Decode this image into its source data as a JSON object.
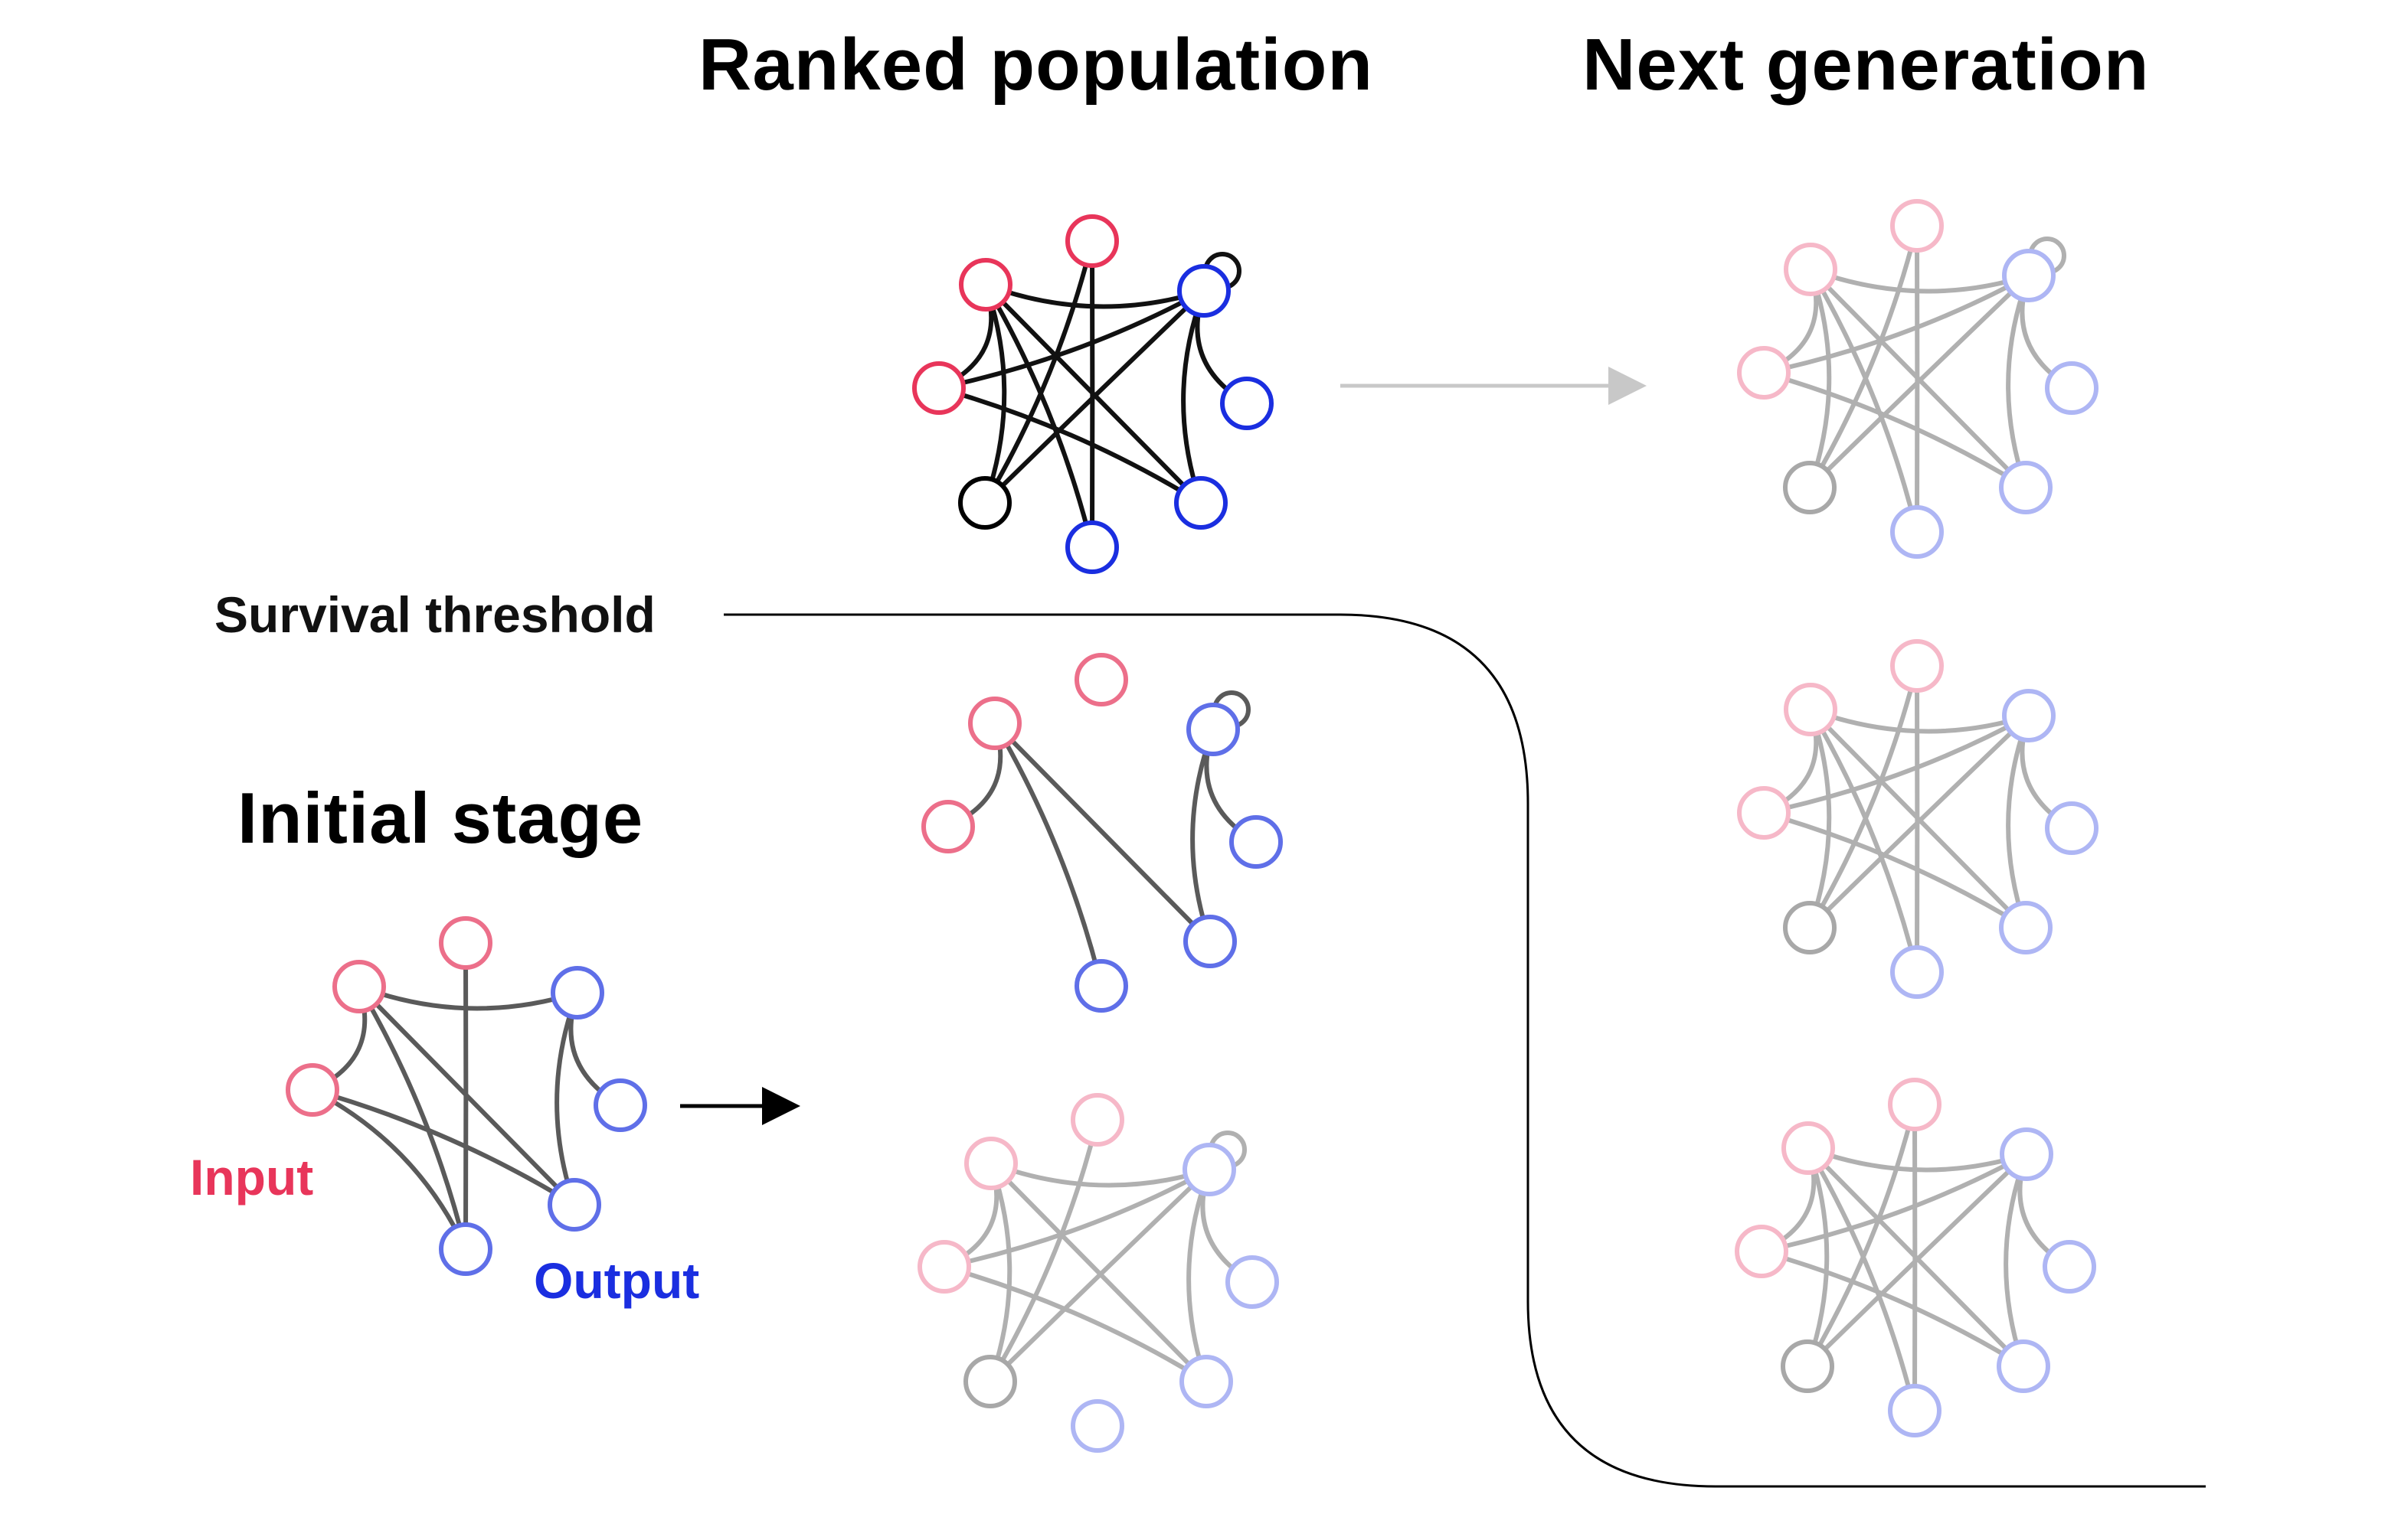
{
  "titles": {
    "ranked_population": "Ranked population",
    "next_generation": "Next generation",
    "initial_stage": "Initial stage"
  },
  "labels": {
    "survival_threshold": "Survival threshold",
    "input": "Input",
    "output": "Output"
  },
  "colors": {
    "input": "#e8355a",
    "output": "#1a2ee0",
    "hidden": "#000000",
    "edge": "#111111",
    "faded_input": "#f6b8c8",
    "faded_output": "#aeb6f4",
    "faded_hidden": "#a8a8a8",
    "faded_edge": "#b0b0b0",
    "mid_input": "#ec6f8a",
    "mid_output": "#5f6fe8",
    "mid_edge": "#5a5a5a"
  }
}
